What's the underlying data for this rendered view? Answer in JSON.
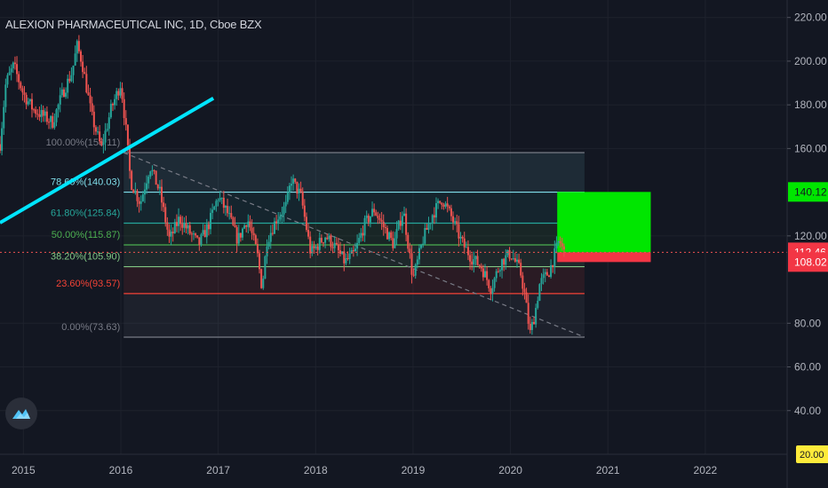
{
  "title": "ALEXION PHARMACEUTICAL INC, 1D, Cboe BZX",
  "colors": {
    "background": "#131722",
    "grid": "#1e222d",
    "text": "#b2b5be",
    "up": "#26a69a",
    "down": "#ef5350",
    "trendline": "#00e5ff",
    "last_price_line": "#ef5350"
  },
  "logo_icon": "tradingview-logo-icon",
  "chart_data": {
    "type": "candlestick",
    "symbol": "ALEXION PHARMACEUTICAL INC",
    "interval": "1D",
    "exchange": "Cboe BZX",
    "y_axis_ticks": [
      "220.00",
      "200.00",
      "180.00",
      "160.00",
      "120.00",
      "80.00",
      "60.00",
      "40.00"
    ],
    "y_tick_values": [
      220,
      200,
      180,
      160,
      120,
      80,
      60,
      40
    ],
    "ylim": [
      20,
      228
    ],
    "x_axis_ticks": [
      "2015",
      "2016",
      "2017",
      "2018",
      "2019",
      "2020",
      "2021",
      "2022"
    ],
    "x_tick_values": [
      2015,
      2016,
      2017,
      2018,
      2019,
      2020,
      2021,
      2022
    ],
    "xlim": [
      2014.76,
      2022.84
    ],
    "price_path": [
      [
        2014.76,
        162
      ],
      [
        2014.82,
        190
      ],
      [
        2014.9,
        198
      ],
      [
        2015.0,
        185
      ],
      [
        2015.1,
        178
      ],
      [
        2015.2,
        175
      ],
      [
        2015.3,
        172
      ],
      [
        2015.4,
        185
      ],
      [
        2015.5,
        195
      ],
      [
        2015.55,
        207
      ],
      [
        2015.6,
        200
      ],
      [
        2015.7,
        175
      ],
      [
        2015.8,
        160
      ],
      [
        2015.9,
        178
      ],
      [
        2016.0,
        190
      ],
      [
        2016.05,
        170
      ],
      [
        2016.1,
        145
      ],
      [
        2016.2,
        135
      ],
      [
        2016.3,
        152
      ],
      [
        2016.4,
        140
      ],
      [
        2016.5,
        118
      ],
      [
        2016.6,
        128
      ],
      [
        2016.7,
        122
      ],
      [
        2016.8,
        116
      ],
      [
        2016.9,
        125
      ],
      [
        2017.0,
        138
      ],
      [
        2017.1,
        130
      ],
      [
        2017.2,
        118
      ],
      [
        2017.3,
        128
      ],
      [
        2017.4,
        112
      ],
      [
        2017.45,
        96
      ],
      [
        2017.5,
        118
      ],
      [
        2017.6,
        128
      ],
      [
        2017.7,
        134
      ],
      [
        2017.75,
        146
      ],
      [
        2017.85,
        138
      ],
      [
        2017.95,
        112
      ],
      [
        2018.1,
        120
      ],
      [
        2018.2,
        115
      ],
      [
        2018.3,
        108
      ],
      [
        2018.4,
        112
      ],
      [
        2018.5,
        125
      ],
      [
        2018.6,
        132
      ],
      [
        2018.7,
        124
      ],
      [
        2018.8,
        116
      ],
      [
        2018.9,
        132
      ],
      [
        2019.0,
        100
      ],
      [
        2019.1,
        118
      ],
      [
        2019.2,
        130
      ],
      [
        2019.3,
        137
      ],
      [
        2019.4,
        128
      ],
      [
        2019.5,
        117
      ],
      [
        2019.6,
        110
      ],
      [
        2019.7,
        106
      ],
      [
        2019.8,
        96
      ],
      [
        2019.9,
        108
      ],
      [
        2020.0,
        112
      ],
      [
        2020.1,
        104
      ],
      [
        2020.15,
        92
      ],
      [
        2020.2,
        75
      ],
      [
        2020.25,
        84
      ],
      [
        2020.3,
        98
      ],
      [
        2020.4,
        104
      ],
      [
        2020.5,
        118
      ],
      [
        2020.55,
        112.47
      ]
    ],
    "fibonacci_retracement": {
      "levels": [
        {
          "label": "100.00%(158.11)",
          "value": 158.11,
          "color": "#787b86"
        },
        {
          "label": "78.60%(140.03)",
          "value": 140.03,
          "color": "#80deea"
        },
        {
          "label": "61.80%(125.84)",
          "value": 125.84,
          "color": "#26a69a"
        },
        {
          "label": "50.00%(115.87)",
          "value": 115.87,
          "color": "#4caf50"
        },
        {
          "label": "38.20%(105.90)",
          "value": 105.9,
          "color": "#81c784"
        },
        {
          "label": "23.60%(93.57)",
          "value": 93.57,
          "color": "#f44336"
        },
        {
          "label": "0.00%(73.63)",
          "value": 73.63,
          "color": "#787b86"
        }
      ],
      "x_range": [
        2016.03,
        2020.76
      ]
    },
    "trendline": {
      "from": [
        2014.76,
        126
      ],
      "to": [
        2016.95,
        183
      ]
    },
    "dashed_trendline": {
      "from": [
        2016.03,
        158.11
      ],
      "to": [
        2020.76,
        73.63
      ]
    },
    "long_position": {
      "x_range": [
        2020.48,
        2021.44
      ],
      "entry": 112.46,
      "target": 140.12,
      "stop": 108.02
    },
    "price_labels": [
      {
        "text": "140.12",
        "value": 140.12,
        "color": "#00e600",
        "text_color": "#131722"
      },
      {
        "text": "112.47",
        "value": 112.47,
        "color": "#363a45",
        "text_color": "#ffffff"
      },
      {
        "text": "112.46",
        "value": 112.46,
        "color": "#f23645",
        "text_color": "#ffffff"
      },
      {
        "text": "108.02",
        "value": 108.02,
        "color": "#f23645",
        "text_color": "#ffffff"
      }
    ],
    "last_price": 112.47,
    "partial_bottom_label": "20.00"
  }
}
